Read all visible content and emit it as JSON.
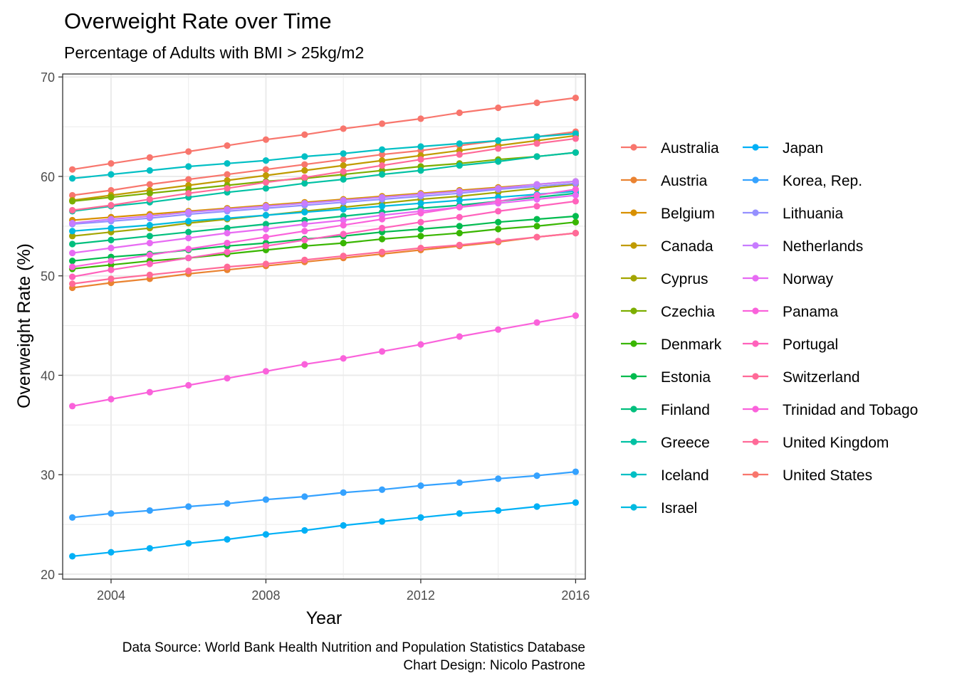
{
  "chart_data": {
    "type": "line",
    "title": "Overweight Rate over Time",
    "subtitle": "Percentage of Adults with BMI > 25kg/m2",
    "xlabel": "Year",
    "ylabel": "Overweight Rate (%)",
    "caption_lines": [
      "Data Source: World Bank Health Nutrition and Population Statistics Database",
      "Chart Design: Nicolo Pastrone"
    ],
    "xlim": [
      2002.75,
      2016.25
    ],
    "ylim": [
      19.5,
      70.3
    ],
    "x_ticks": [
      2004,
      2008,
      2012,
      2016
    ],
    "y_ticks": [
      20,
      30,
      40,
      50,
      60,
      70
    ],
    "grid": true,
    "legend_position": "right",
    "x": [
      2003,
      2004,
      2005,
      2006,
      2007,
      2008,
      2009,
      2010,
      2011,
      2012,
      2013,
      2014,
      2015,
      2016
    ],
    "series": [
      {
        "name": "Australia",
        "color": "#F8766D",
        "values": [
          58.1,
          58.6,
          59.2,
          59.7,
          60.2,
          60.7,
          61.2,
          61.7,
          62.2,
          62.6,
          63.1,
          63.6,
          64.0,
          64.5
        ]
      },
      {
        "name": "Austria",
        "color": "#EA8331",
        "values": [
          48.8,
          49.3,
          49.7,
          50.2,
          50.6,
          51.0,
          51.4,
          51.8,
          52.2,
          52.6,
          53.0,
          53.4,
          53.9,
          54.3
        ]
      },
      {
        "name": "Belgium",
        "color": "#D89000",
        "values": [
          55.6,
          55.9,
          56.2,
          56.5,
          56.8,
          57.1,
          57.4,
          57.7,
          58.0,
          58.3,
          58.6,
          58.9,
          59.2,
          59.5
        ]
      },
      {
        "name": "Canada",
        "color": "#C09B00",
        "values": [
          57.6,
          58.1,
          58.6,
          59.1,
          59.6,
          60.1,
          60.6,
          61.1,
          61.6,
          62.1,
          62.6,
          63.1,
          63.6,
          64.1
        ]
      },
      {
        "name": "Cyprus",
        "color": "#A3A500",
        "values": [
          54.0,
          54.4,
          54.8,
          55.3,
          55.7,
          56.1,
          56.5,
          56.9,
          57.3,
          57.7,
          58.0,
          58.4,
          58.8,
          59.2
        ]
      },
      {
        "name": "Czechia",
        "color": "#7CAE00",
        "values": [
          57.5,
          57.9,
          58.3,
          58.7,
          59.1,
          59.5,
          59.8,
          60.2,
          60.6,
          61.0,
          61.3,
          61.7,
          62.0,
          62.4
        ]
      },
      {
        "name": "Denmark",
        "color": "#39B600",
        "values": [
          50.7,
          51.1,
          51.5,
          51.8,
          52.2,
          52.6,
          53.0,
          53.3,
          53.7,
          54.0,
          54.3,
          54.7,
          55.0,
          55.4
        ]
      },
      {
        "name": "Estonia",
        "color": "#00BB4E",
        "values": [
          51.5,
          51.9,
          52.2,
          52.6,
          53.0,
          53.3,
          53.7,
          54.0,
          54.4,
          54.7,
          55.0,
          55.4,
          55.7,
          56.0
        ]
      },
      {
        "name": "Finland",
        "color": "#00BF7D",
        "values": [
          53.2,
          53.6,
          54.0,
          54.4,
          54.8,
          55.2,
          55.6,
          56.0,
          56.4,
          56.8,
          57.1,
          57.5,
          57.9,
          58.3
        ]
      },
      {
        "name": "Greece",
        "color": "#00C1A3",
        "values": [
          56.5,
          57.0,
          57.4,
          57.9,
          58.4,
          58.8,
          59.3,
          59.7,
          60.2,
          60.6,
          61.1,
          61.5,
          62.0,
          62.4
        ]
      },
      {
        "name": "Iceland",
        "color": "#00BFC4",
        "values": [
          59.8,
          60.2,
          60.6,
          61.0,
          61.3,
          61.6,
          62.0,
          62.3,
          62.7,
          63.0,
          63.3,
          63.6,
          64.0,
          64.3
        ]
      },
      {
        "name": "Israel",
        "color": "#00BAE0",
        "values": [
          54.5,
          54.8,
          55.1,
          55.5,
          55.8,
          56.1,
          56.4,
          56.7,
          57.0,
          57.3,
          57.6,
          57.9,
          58.2,
          58.5
        ]
      },
      {
        "name": "Japan",
        "color": "#00B0F6",
        "values": [
          21.8,
          22.2,
          22.6,
          23.1,
          23.5,
          24.0,
          24.4,
          24.9,
          25.3,
          25.7,
          26.1,
          26.4,
          26.8,
          27.2
        ]
      },
      {
        "name": "Korea, Rep.",
        "color": "#35A2FF",
        "values": [
          25.7,
          26.1,
          26.4,
          26.8,
          27.1,
          27.5,
          27.8,
          28.2,
          28.5,
          28.9,
          29.2,
          29.6,
          29.9,
          30.3
        ]
      },
      {
        "name": "Lithuania",
        "color": "#9590FF",
        "values": [
          55.2,
          55.5,
          55.8,
          56.2,
          56.5,
          56.8,
          57.1,
          57.4,
          57.7,
          58.0,
          58.3,
          58.7,
          59.0,
          59.3
        ]
      },
      {
        "name": "Netherlands",
        "color": "#C77CFF",
        "values": [
          55.3,
          55.7,
          56.0,
          56.4,
          56.7,
          57.0,
          57.3,
          57.6,
          57.9,
          58.2,
          58.5,
          58.8,
          59.2,
          59.5
        ]
      },
      {
        "name": "Norway",
        "color": "#E76BF3",
        "values": [
          52.3,
          52.8,
          53.3,
          53.8,
          54.3,
          54.7,
          55.2,
          55.6,
          56.1,
          56.5,
          56.9,
          57.3,
          57.7,
          58.1
        ]
      },
      {
        "name": "Panama",
        "color": "#FA62DB",
        "values": [
          50.9,
          51.5,
          52.1,
          52.7,
          53.3,
          53.9,
          54.5,
          55.1,
          55.7,
          56.3,
          56.9,
          57.5,
          58.1,
          58.7
        ]
      },
      {
        "name": "Portugal",
        "color": "#FF62BC",
        "values": [
          49.9,
          50.6,
          51.2,
          51.8,
          52.4,
          53.0,
          53.6,
          54.2,
          54.8,
          55.4,
          55.9,
          56.5,
          57.0,
          57.5
        ]
      },
      {
        "name": "Switzerland",
        "color": "#FF6A98",
        "values": [
          49.2,
          49.7,
          50.1,
          50.5,
          50.9,
          51.2,
          51.6,
          52.0,
          52.4,
          52.8,
          53.1,
          53.5,
          53.9,
          54.3
        ]
      },
      {
        "name": "Trinidad and Tobago",
        "color": "#FA62DB",
        "values": [
          36.9,
          37.6,
          38.3,
          39.0,
          39.7,
          40.4,
          41.1,
          41.7,
          42.4,
          43.1,
          43.9,
          44.6,
          45.3,
          46.0
        ]
      },
      {
        "name": "United Kingdom",
        "color": "#FF6A98",
        "values": [
          56.6,
          57.1,
          57.7,
          58.3,
          58.8,
          59.4,
          59.9,
          60.5,
          61.1,
          61.7,
          62.2,
          62.8,
          63.3,
          63.8
        ]
      },
      {
        "name": "United States",
        "color": "#F8766D",
        "values": [
          60.7,
          61.3,
          61.9,
          62.5,
          63.1,
          63.7,
          64.2,
          64.8,
          65.3,
          65.8,
          66.4,
          66.9,
          67.4,
          67.9
        ]
      }
    ],
    "legend_colors": [
      "#F8766D",
      "#EA8331",
      "#D89000",
      "#C09B00",
      "#A3A500",
      "#7CAE00",
      "#39B600",
      "#00BB4E",
      "#00BF7D",
      "#00C1A3",
      "#00BFC4",
      "#00BAE0",
      "#00B0F6",
      "#35A2FF",
      "#9590FF",
      "#C77CFF",
      "#E76BF3",
      "#FA62DB",
      "#FF62BC",
      "#FF6A98",
      "#FA62DB",
      "#FF6A98",
      "#F8766D"
    ]
  }
}
